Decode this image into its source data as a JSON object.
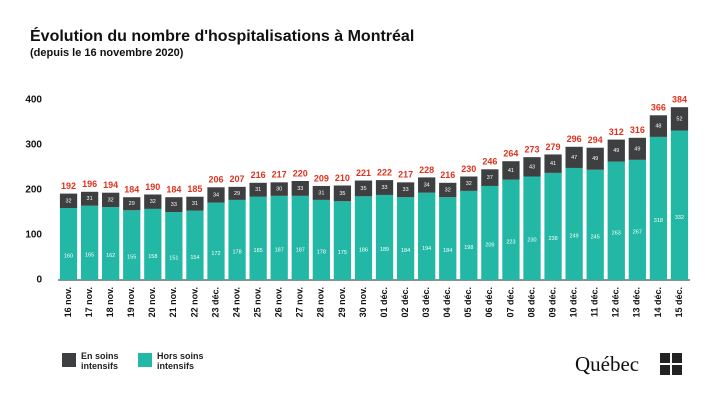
{
  "chart_data": {
    "type": "stacked-bar",
    "title": "Évolution du nombre d'hospitalisations à Montréal",
    "subtitle": "(depuis le 16 novembre 2020)",
    "categories": [
      "16 nov.",
      "17 nov.",
      "18 nov.",
      "19 nov.",
      "20 nov.",
      "21 nov.",
      "22 nov.",
      "23 déc.",
      "24 nov.",
      "25 nov.",
      "26 nov.",
      "27 nov.",
      "28 nov.",
      "29 nov.",
      "30 nov.",
      "01 déc.",
      "02 déc.",
      "03 déc.",
      "04 déc.",
      "05 déc.",
      "06 déc.",
      "07 déc.",
      "08 déc.",
      "09 déc.",
      "10 déc.",
      "11 déc.",
      "12 déc.",
      "13 déc.",
      "14 déc.",
      "15 déc."
    ],
    "series": [
      {
        "name": "Hors soins intensifs",
        "color": "#22b8a5",
        "values": [
          160,
          165,
          162,
          155,
          158,
          151,
          154,
          172,
          178,
          185,
          187,
          187,
          178,
          175,
          186,
          189,
          184,
          194,
          184,
          198,
          209,
          223,
          230,
          238,
          249,
          245,
          263,
          267,
          318,
          332
        ]
      },
      {
        "name": "En soins intensifs",
        "color": "#3d3f40",
        "values": [
          32,
          31,
          32,
          29,
          32,
          33,
          31,
          34,
          29,
          31,
          30,
          33,
          31,
          35,
          35,
          33,
          33,
          34,
          32,
          32,
          37,
          41,
          43,
          41,
          47,
          49,
          49,
          49,
          48,
          52
        ]
      }
    ],
    "totals": [
      192,
      196,
      194,
      184,
      190,
      184,
      185,
      206,
      207,
      216,
      217,
      220,
      209,
      210,
      221,
      222,
      217,
      228,
      216,
      230,
      246,
      264,
      273,
      279,
      296,
      294,
      312,
      316,
      366,
      384
    ],
    "totals_color": "#e0321e",
    "ylim": [
      0,
      400
    ],
    "yticks": [
      0,
      100,
      200,
      300,
      400
    ],
    "logo_text": "Québec"
  }
}
